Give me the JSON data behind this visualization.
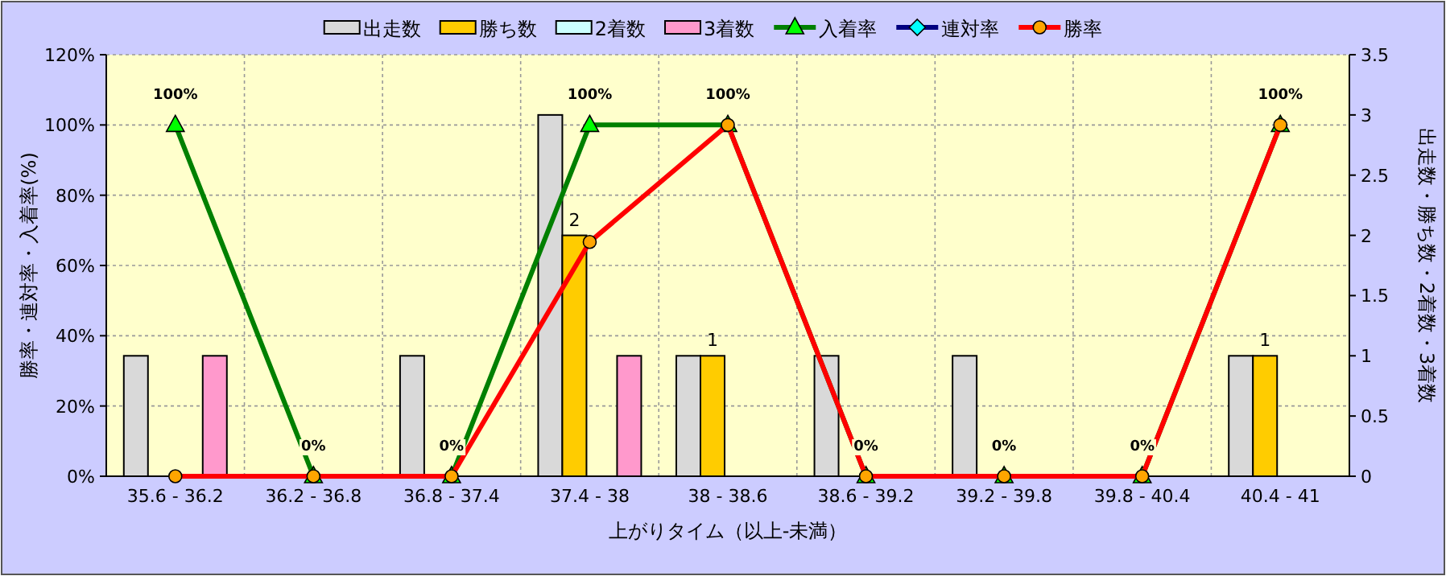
{
  "chart_data": {
    "type": "bar",
    "xlabel": "上がりタイム（以上-未満）",
    "ylabel": "勝率・連対率・入着率(%)",
    "y2label": "出走数・勝ち数・2着数・3着数",
    "categories": [
      "35.6 - 36.2",
      "36.2 - 36.8",
      "36.8 - 37.4",
      "37.4 - 38",
      "38 - 38.6",
      "38.6 - 39.2",
      "39.2 - 39.8",
      "39.8 - 40.4",
      "40.4 - 41"
    ],
    "ylim": [
      0,
      120
    ],
    "yticks": [
      {
        "value": 0,
        "label": "0%"
      },
      {
        "value": 20,
        "label": "20%"
      },
      {
        "value": 40,
        "label": "40%"
      },
      {
        "value": 60,
        "label": "60%"
      },
      {
        "value": 80,
        "label": "80%"
      },
      {
        "value": 100,
        "label": "100%"
      },
      {
        "value": 120,
        "label": "120%"
      }
    ],
    "y2lim": [
      0,
      3.5
    ],
    "y2ticks": [
      0,
      0.5,
      1,
      1.5,
      2,
      2.5,
      3,
      3.5
    ],
    "grid": true,
    "legend": "top",
    "series": [
      {
        "name": "出走数",
        "axis": "y2",
        "color": "#d9d9d9",
        "values": [
          1,
          0,
          1,
          3,
          1,
          1,
          1,
          0,
          1
        ]
      },
      {
        "name": "勝ち数",
        "axis": "y2",
        "color": "#ffcc00",
        "values": [
          0,
          0,
          0,
          2,
          1,
          0,
          0,
          0,
          1
        ],
        "value_labels": [
          null,
          null,
          null,
          "2",
          "1",
          null,
          null,
          null,
          "1"
        ]
      },
      {
        "name": "2着数",
        "axis": "y2",
        "color": "#ccffff",
        "values": [
          0,
          0,
          0,
          0,
          0,
          0,
          0,
          0,
          0
        ]
      },
      {
        "name": "3着数",
        "axis": "y2",
        "color": "#ff99cc",
        "values": [
          1,
          0,
          0,
          1,
          0,
          0,
          0,
          0,
          0
        ]
      },
      {
        "name": "入着率",
        "type": "line",
        "marker": "triangle",
        "color": "#008000",
        "values": [
          100,
          0,
          0,
          100,
          100,
          0,
          0,
          0,
          100
        ],
        "value_labels": [
          "100%",
          "0%",
          "0%",
          "100%",
          "100%",
          "0%",
          "0%",
          "0%",
          "100%"
        ]
      },
      {
        "name": "連対率",
        "type": "line",
        "marker": "diamond",
        "color": "#000080",
        "values": [
          null,
          null,
          null,
          null,
          null,
          null,
          null,
          null,
          null
        ]
      },
      {
        "name": "勝率",
        "type": "line",
        "marker": "circle",
        "color": "#ff0000",
        "values": [
          0,
          0,
          0,
          66.7,
          100,
          0,
          0,
          0,
          100
        ]
      }
    ]
  }
}
